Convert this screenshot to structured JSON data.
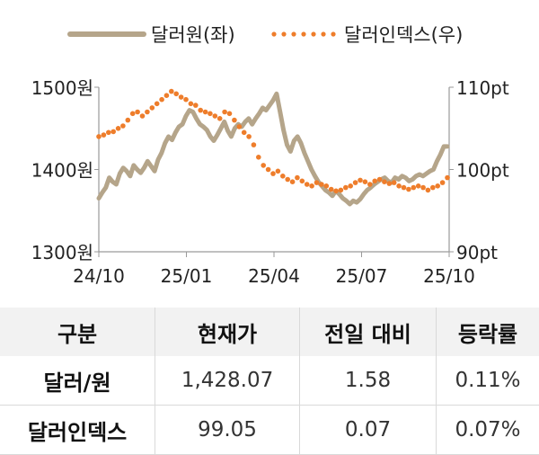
{
  "chart_data": {
    "type": "line",
    "legend": {
      "placement": "top",
      "entries": [
        "달러원(좌)",
        "달러인덱스(우)"
      ]
    },
    "x_tick_labels": [
      "24/10",
      "25/01",
      "25/04",
      "25/07",
      "25/10"
    ],
    "y_left": {
      "range": [
        1300,
        1500
      ],
      "ticks": [
        "1300원",
        "1400원",
        "1500원"
      ]
    },
    "y_right": {
      "range": [
        90,
        110
      ],
      "ticks": [
        "90pt",
        "100pt",
        "110pt"
      ]
    },
    "series": [
      {
        "name": "달러원(좌)",
        "axis": "left",
        "style": "line",
        "color": "#b5a58a",
        "values": [
          1365,
          1372,
          1378,
          1390,
          1385,
          1382,
          1395,
          1402,
          1398,
          1392,
          1405,
          1400,
          1396,
          1402,
          1410,
          1404,
          1398,
          1412,
          1420,
          1432,
          1440,
          1436,
          1445,
          1452,
          1455,
          1465,
          1472,
          1470,
          1462,
          1455,
          1452,
          1448,
          1440,
          1435,
          1442,
          1450,
          1458,
          1447,
          1440,
          1450,
          1455,
          1452,
          1458,
          1462,
          1455,
          1462,
          1468,
          1475,
          1472,
          1478,
          1484,
          1492,
          1470,
          1448,
          1430,
          1422,
          1435,
          1440,
          1432,
          1420,
          1410,
          1400,
          1392,
          1385,
          1380,
          1375,
          1372,
          1368,
          1374,
          1370,
          1365,
          1362,
          1358,
          1362,
          1360,
          1364,
          1370,
          1375,
          1378,
          1382,
          1385,
          1388,
          1390,
          1386,
          1384,
          1390,
          1388,
          1392,
          1390,
          1386,
          1388,
          1392,
          1394,
          1392,
          1395,
          1398,
          1400,
          1410,
          1418,
          1428,
          1428
        ]
      },
      {
        "name": "달러인덱스(우)",
        "axis": "right",
        "style": "dotted",
        "color": "#ee7d2b",
        "values": [
          104.0,
          104.2,
          104.5,
          104.6,
          105.0,
          105.3,
          106.0,
          106.8,
          107.0,
          106.5,
          107.0,
          107.5,
          108.0,
          108.5,
          109.0,
          109.5,
          109.2,
          108.8,
          108.5,
          108.0,
          107.8,
          107.2,
          107.0,
          106.8,
          106.5,
          106.2,
          107.0,
          106.8,
          106.0,
          105.2,
          104.5,
          104.0,
          103.0,
          101.5,
          100.5,
          100.0,
          99.5,
          99.8,
          99.2,
          98.8,
          98.5,
          99.0,
          98.6,
          98.2,
          98.0,
          98.4,
          98.2,
          98.0,
          97.6,
          97.4,
          97.5,
          97.8,
          98.0,
          98.4,
          98.7,
          98.5,
          98.2,
          98.6,
          98.8,
          98.5,
          98.3,
          98.4,
          98.0,
          97.8,
          97.6,
          97.8,
          98.0,
          97.8,
          97.5,
          97.8,
          98.0,
          98.4,
          99.0
        ]
      }
    ]
  },
  "table": {
    "headers": [
      "구분",
      "현재가",
      "전일 대비",
      "등락률"
    ],
    "rows": [
      {
        "name": "달러/원",
        "price": "1,428.07",
        "change": "1.58",
        "rate": "0.11%"
      },
      {
        "name": "달러인덱스",
        "price": "99.05",
        "change": "0.07",
        "rate": "0.07%"
      }
    ]
  }
}
